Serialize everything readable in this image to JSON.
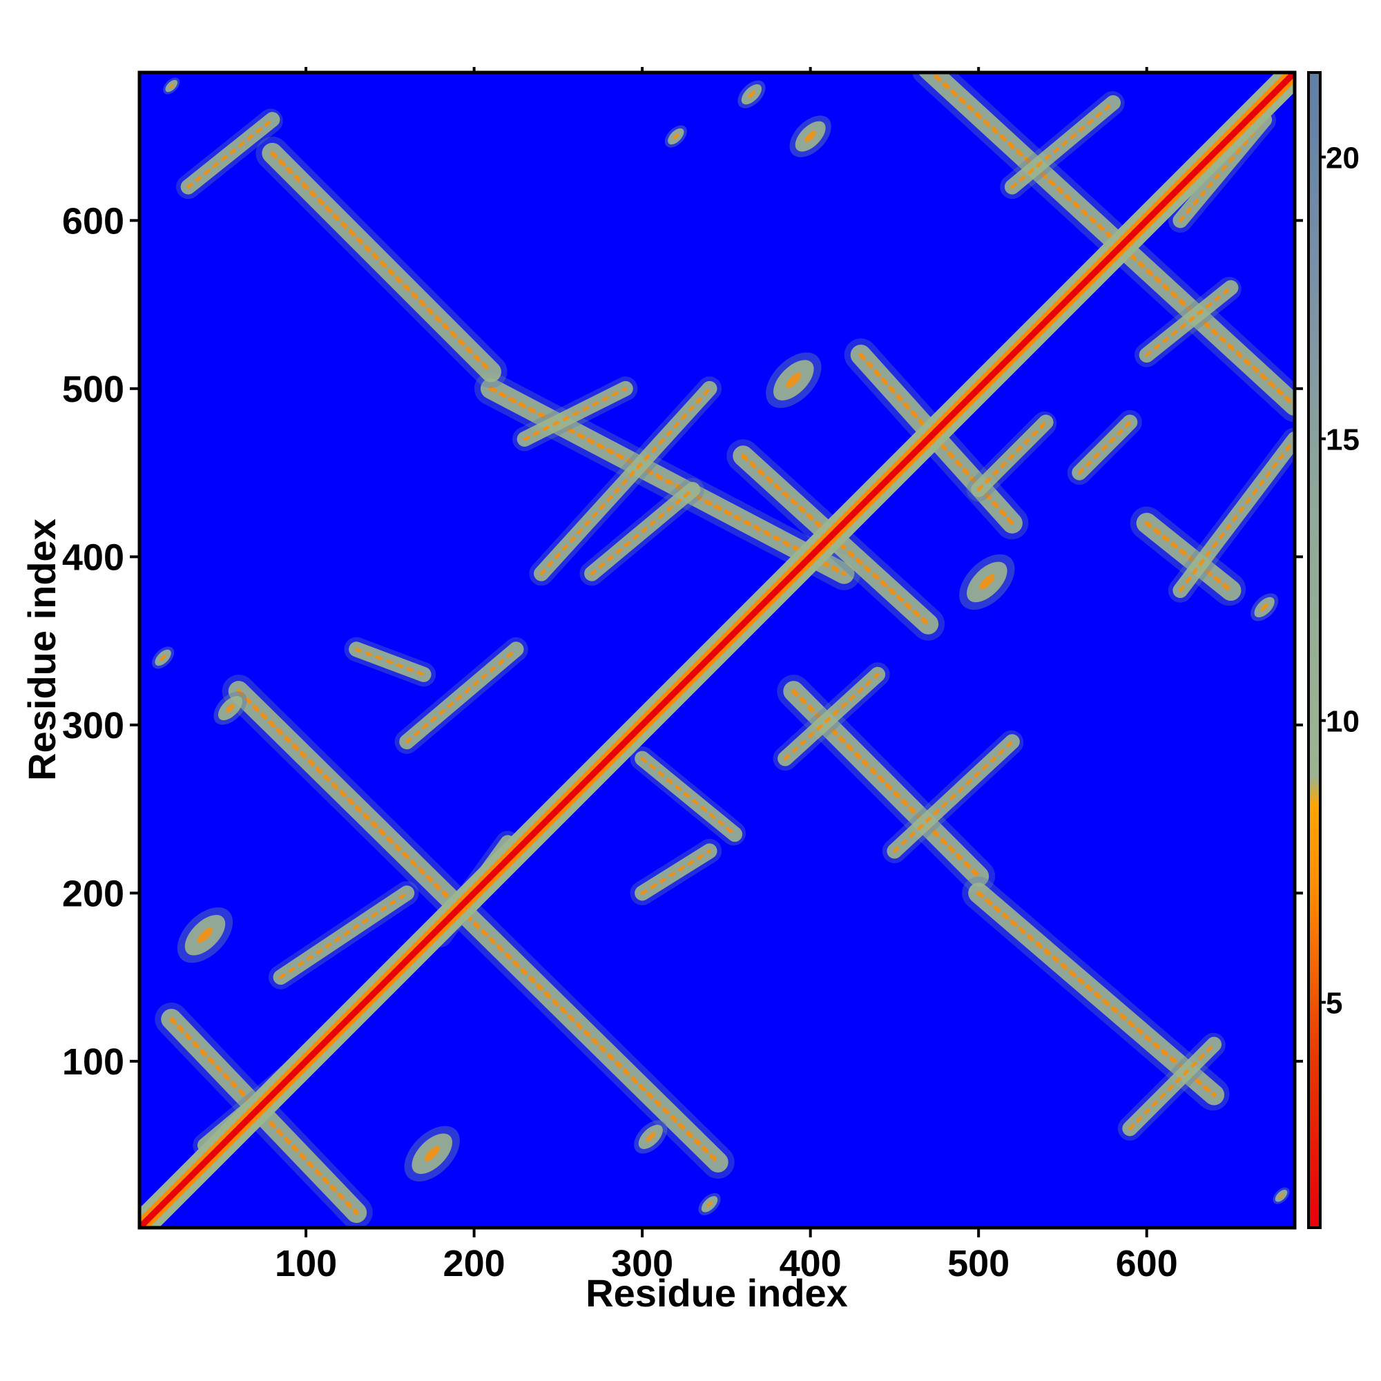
{
  "chart_data": {
    "type": "heatmap",
    "title": "",
    "xlabel": "Residue index",
    "ylabel": "Residue index",
    "xlim": [
      1,
      688
    ],
    "ylim": [
      1,
      688
    ],
    "x_ticks": [
      100,
      200,
      300,
      400,
      500,
      600
    ],
    "y_ticks": [
      100,
      200,
      300,
      400,
      500,
      600
    ],
    "colorbar": {
      "range": [
        1,
        21.5
      ],
      "ticks": [
        5,
        10,
        15,
        20
      ],
      "colors": {
        "low": "#e8000b",
        "mid_low": "#ff8c00",
        "mid": "#9cb590",
        "high": "#5f7fa8",
        "background": "#0000ff"
      },
      "scale_stops": [
        {
          "value": 1,
          "color": "#e8000b"
        },
        {
          "value": 4,
          "color": "#e83800"
        },
        {
          "value": 7,
          "color": "#ff8c00"
        },
        {
          "value": 8.5,
          "color": "#ffa500"
        },
        {
          "value": 9,
          "color": "#9cb590"
        },
        {
          "value": 14,
          "color": "#8fa89a"
        },
        {
          "value": 18,
          "color": "#7890a8"
        },
        {
          "value": 21.5,
          "color": "#5f7fa8"
        }
      ]
    },
    "features": {
      "diagonal": {
        "from": 1,
        "to": 688
      },
      "antidiagonal_bands": [
        {
          "from": [
            20,
            125
          ],
          "to": [
            130,
            10
          ]
        },
        {
          "from": [
            60,
            320
          ],
          "to": [
            345,
            40
          ]
        },
        {
          "from": [
            210,
            500
          ],
          "to": [
            420,
            390
          ]
        },
        {
          "from": [
            80,
            640
          ],
          "to": [
            210,
            510
          ]
        },
        {
          "from": [
            360,
            460
          ],
          "to": [
            470,
            360
          ]
        },
        {
          "from": [
            430,
            520
          ],
          "to": [
            520,
            420
          ]
        },
        {
          "from": [
            390,
            320
          ],
          "to": [
            500,
            210
          ]
        },
        {
          "from": [
            500,
            200
          ],
          "to": [
            640,
            80
          ]
        },
        {
          "from": [
            470,
            690
          ],
          "to": [
            688,
            490
          ]
        },
        {
          "from": [
            600,
            420
          ],
          "to": [
            650,
            380
          ]
        }
      ],
      "crossing_bands": [
        {
          "from": [
            40,
            50
          ],
          "to": [
            100,
            100
          ]
        },
        {
          "from": [
            85,
            150
          ],
          "to": [
            160,
            200
          ]
        },
        {
          "from": [
            130,
            345
          ],
          "to": [
            170,
            330
          ]
        },
        {
          "from": [
            160,
            290
          ],
          "to": [
            225,
            345
          ]
        },
        {
          "from": [
            180,
            175
          ],
          "to": [
            220,
            230
          ]
        },
        {
          "from": [
            240,
            390
          ],
          "to": [
            340,
            500
          ]
        },
        {
          "from": [
            300,
            280
          ],
          "to": [
            355,
            235
          ]
        },
        {
          "from": [
            300,
            200
          ],
          "to": [
            340,
            225
          ]
        },
        {
          "from": [
            385,
            280
          ],
          "to": [
            440,
            330
          ]
        },
        {
          "from": [
            450,
            225
          ],
          "to": [
            520,
            290
          ]
        },
        {
          "from": [
            500,
            440
          ],
          "to": [
            540,
            480
          ]
        },
        {
          "from": [
            560,
            450
          ],
          "to": [
            590,
            480
          ]
        },
        {
          "from": [
            600,
            520
          ],
          "to": [
            650,
            560
          ]
        },
        {
          "from": [
            620,
            380
          ],
          "to": [
            688,
            470
          ]
        },
        {
          "from": [
            590,
            60
          ],
          "to": [
            640,
            110
          ]
        },
        {
          "from": [
            520,
            620
          ],
          "to": [
            580,
            670
          ]
        },
        {
          "from": [
            620,
            600
          ],
          "to": [
            670,
            660
          ]
        },
        {
          "from": [
            30,
            620
          ],
          "to": [
            80,
            660
          ]
        },
        {
          "from": [
            230,
            470
          ],
          "to": [
            290,
            500
          ]
        },
        {
          "from": [
            270,
            390
          ],
          "to": [
            330,
            440
          ]
        }
      ],
      "blobs": [
        {
          "center": [
            40,
            175
          ],
          "spread": 20
        },
        {
          "center": [
            175,
            45
          ],
          "spread": 20
        },
        {
          "center": [
            305,
            55
          ],
          "spread": 12
        },
        {
          "center": [
            340,
            15
          ],
          "spread": 8
        },
        {
          "center": [
            15,
            340
          ],
          "spread": 8
        },
        {
          "center": [
            55,
            310
          ],
          "spread": 12
        },
        {
          "center": [
            390,
            505
          ],
          "spread": 20
        },
        {
          "center": [
            505,
            385
          ],
          "spread": 20
        },
        {
          "center": [
            400,
            650
          ],
          "spread": 15
        },
        {
          "center": [
            670,
            370
          ],
          "spread": 10
        },
        {
          "center": [
            365,
            675
          ],
          "spread": 10
        },
        {
          "center": [
            320,
            650
          ],
          "spread": 8
        },
        {
          "center": [
            20,
            680
          ],
          "spread": 6
        },
        {
          "center": [
            680,
            20
          ],
          "spread": 6
        }
      ]
    }
  }
}
